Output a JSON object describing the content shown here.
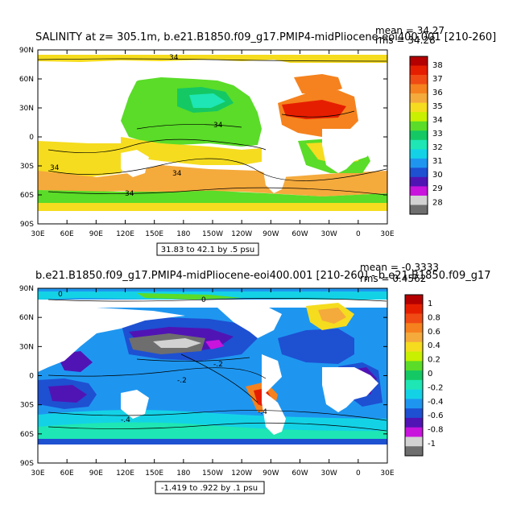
{
  "panels": [
    {
      "title": "SALINITY at z= 305.1m, b.e21.B1850.f09_g17.PMIP4-midPliocene-eoi400.001 [210-260]",
      "mean_text": "mean = 34.27",
      "rms_text": "rms = 34.28",
      "range_note": "31.83 to 42.1 by .5 psu",
      "contour_labels": [
        "34",
        "34",
        "34",
        "34",
        "34"
      ],
      "colorbar": {
        "labels": [
          "38",
          "37",
          "36",
          "35",
          "34",
          "33",
          "32",
          "31",
          "30",
          "29",
          "28"
        ],
        "colors": [
          "#b40000",
          "#e61e00",
          "#f04b14",
          "#f5821e",
          "#f5aa3c",
          "#f5dc1e",
          "#c8f000",
          "#5adc28",
          "#14c864",
          "#1ee6b4",
          "#14d2e6",
          "#1e96f0",
          "#1e50d2",
          "#5014b4",
          "#c814dc",
          "#d2d2d2",
          "#6e6e6e"
        ]
      }
    },
    {
      "title": "b.e21.B1850.f09_g17.PMIP4-midPliocene-eoi400.001 [210-260] - b.e21.B1850.f09_g17",
      "mean_text": "mean = -0.3333",
      "rms_text": "rms = 0.4562",
      "range_note": "-1.419 to .922 by .1 psu",
      "contour_labels": [
        "0",
        "0",
        "-.2",
        "-.2",
        "-.4",
        "-.4"
      ],
      "colorbar": {
        "labels": [
          "1",
          "0.8",
          "0.6",
          "0.4",
          "0.2",
          "0",
          "-0.2",
          "-0.4",
          "-0.6",
          "-0.8",
          "-1"
        ],
        "colors": [
          "#b40000",
          "#e61e00",
          "#f04b14",
          "#f5821e",
          "#f5aa3c",
          "#f5dc1e",
          "#c8f000",
          "#5adc28",
          "#14c864",
          "#1ee6b4",
          "#14d2e6",
          "#1e96f0",
          "#1e50d2",
          "#5014b4",
          "#c814dc",
          "#d2d2d2",
          "#6e6e6e"
        ]
      }
    }
  ],
  "axes": {
    "lat_labels": [
      "90N",
      "60N",
      "30N",
      "0",
      "30S",
      "60S",
      "90S"
    ],
    "lon_labels": [
      "30E",
      "60E",
      "90E",
      "120E",
      "150E",
      "180",
      "150W",
      "120W",
      "90W",
      "60W",
      "30W",
      "0",
      "30E"
    ]
  }
}
